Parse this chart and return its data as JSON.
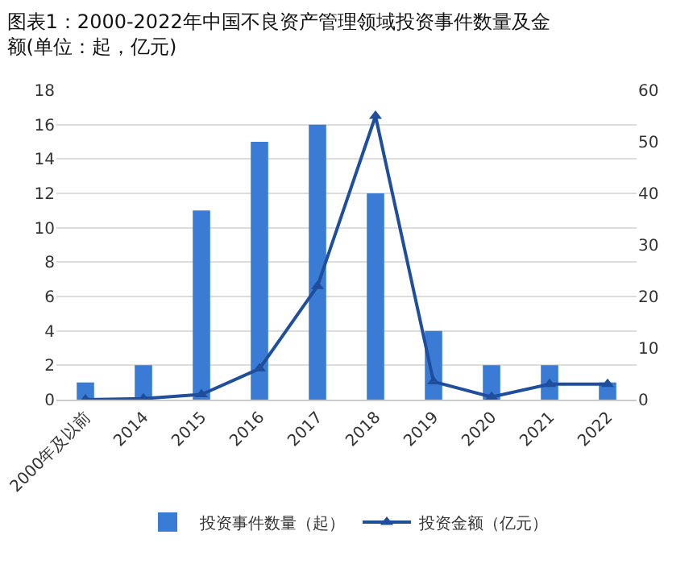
{
  "chart_data": {
    "type": "bar",
    "title": "图表1：2000-2022年中国不良资产管理领域投资事件数量及金额(单位：起，亿元)",
    "categories": [
      "2000年及以前",
      "2014",
      "2015",
      "2016",
      "2017",
      "2018",
      "2019",
      "2020",
      "2021",
      "2022"
    ],
    "series": [
      {
        "name": "投资事件数量（起）",
        "color": "#3a7bd5",
        "values": [
          1,
          2,
          11,
          15,
          16,
          12,
          4,
          2,
          2,
          1
        ]
      },
      {
        "name": "投资金额（亿元）",
        "type": "line",
        "axis": "y2",
        "color": "#1f4e9c",
        "marker": "triangle",
        "values": [
          0,
          0.2,
          1,
          6,
          22,
          55,
          3.5,
          0.5,
          3,
          3
        ]
      }
    ],
    "ylim": [
      0,
      18
    ],
    "yticks": [
      0,
      2,
      4,
      6,
      8,
      10,
      12,
      14,
      16,
      18
    ],
    "y2lim": [
      0,
      60
    ],
    "y2ticks": [
      0,
      10,
      20,
      30,
      40,
      50,
      60
    ],
    "grid": "y",
    "legend": "bottom"
  }
}
